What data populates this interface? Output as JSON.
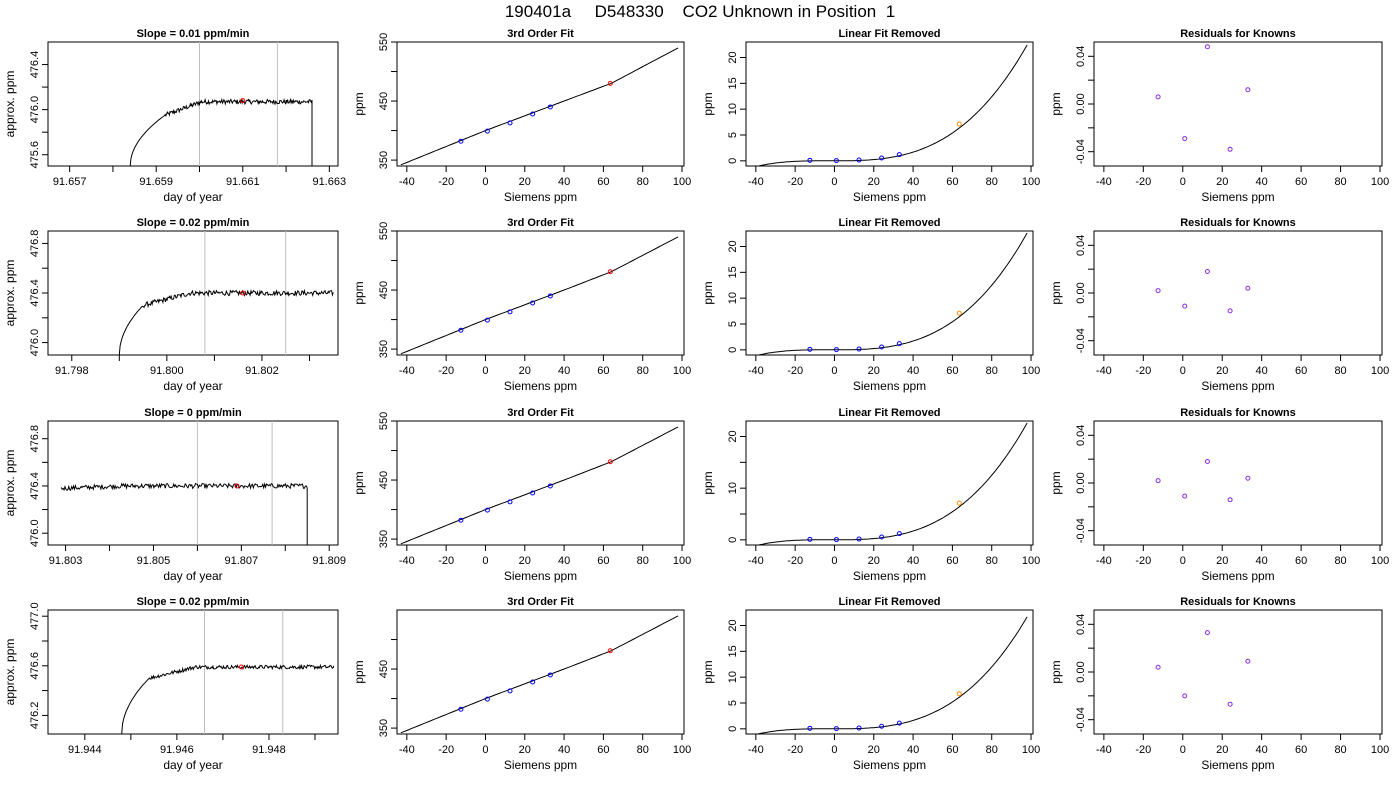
{
  "page": {
    "title": "190401a     D548330    CO2 Unknown in Position  1"
  },
  "colors": {
    "line": "#000000",
    "known_point": "#0000ff",
    "unknown_point": "#ff0000",
    "residual_point": "#8a2be2",
    "unknown_alt_point": "#ff8c00",
    "vline": "#bebebe"
  },
  "chart_data": [
    {
      "row": 1,
      "type": "line",
      "title": "Slope =  0.01  ppm/min",
      "xlabel": "day of year",
      "ylabel": "approx. ppm",
      "xlim": [
        91.6565,
        91.6632
      ],
      "ylim": [
        475.5,
        476.6
      ],
      "xticks": [
        91.657,
        91.658,
        91.659,
        91.66,
        91.661,
        91.662,
        91.663
      ],
      "xtick_labels": [
        "91.657",
        "",
        "91.659",
        "",
        "91.661",
        "",
        "91.663"
      ],
      "yticks": [
        475.6,
        475.8,
        476.0,
        476.2,
        476.4
      ],
      "ytick_labels": [
        "475.6",
        "",
        "476.0",
        "",
        "476.4"
      ],
      "vlines": [
        91.66,
        91.6618
      ],
      "marker": [
        91.661,
        476.08
      ],
      "trace": {
        "start": 91.6584,
        "plateau_start": 91.6592,
        "end": 91.6626,
        "start_level": 475.5,
        "shoulder": 475.95,
        "level": 476.07,
        "end_level": 475.5,
        "noise": 0.02
      }
    },
    {
      "row": 1,
      "type": "scatter",
      "title": "3rd Order Fit",
      "xlabel": "Siemens ppm",
      "ylabel": "ppm",
      "xlim": [
        -45,
        101
      ],
      "ylim": [
        340,
        550
      ],
      "xticks": [
        -40,
        -20,
        0,
        20,
        40,
        60,
        80,
        100
      ],
      "xtick_labels": [
        "-40",
        "-20",
        "0",
        "20",
        "40",
        "60",
        "80",
        "100"
      ],
      "yticks": [
        350,
        400,
        450,
        500,
        550
      ],
      "ytick_labels": [
        "350",
        "",
        "450",
        "",
        "550"
      ],
      "curve": [
        [
          -43,
          342
        ],
        [
          0,
          400
        ],
        [
          40,
          450
        ],
        [
          64,
          480
        ],
        [
          98,
          540
        ]
      ],
      "known_points": [
        [
          -12.5,
          382
        ],
        [
          1,
          399
        ],
        [
          12.5,
          413
        ],
        [
          24,
          428
        ],
        [
          33,
          440
        ]
      ],
      "unknown_points": [
        [
          63.5,
          480
        ]
      ]
    },
    {
      "row": 1,
      "type": "scatter",
      "title": "Linear Fit Removed",
      "xlabel": "Siemens ppm",
      "ylabel": "ppm",
      "xlim": [
        -45,
        101
      ],
      "ylim": [
        -1,
        23
      ],
      "xticks": [
        -40,
        -20,
        0,
        20,
        40,
        60,
        80,
        100
      ],
      "xtick_labels": [
        "-40",
        "-20",
        "0",
        "20",
        "40",
        "60",
        "80",
        "100"
      ],
      "yticks": [
        0,
        5,
        10,
        15,
        20
      ],
      "ytick_labels": [
        "0",
        "5",
        "10",
        "15",
        "20"
      ],
      "curve_cubic": {
        "a": 2.2e-05,
        "b": 0.018,
        "x0": -40,
        "x1": 98
      },
      "known_points": [
        [
          -12.5,
          0.1
        ],
        [
          1,
          0.05
        ],
        [
          12.5,
          0.15
        ],
        [
          24,
          0.55
        ],
        [
          33,
          1.2
        ]
      ],
      "unknown_points": [
        [
          63.5,
          7.1
        ]
      ]
    },
    {
      "row": 1,
      "type": "scatter",
      "title": "Residuals for Knowns",
      "xlabel": "Siemens ppm",
      "ylabel": "ppm",
      "xlim": [
        -45,
        101
      ],
      "ylim": [
        -0.052,
        0.052
      ],
      "xticks": [
        -40,
        -20,
        0,
        20,
        40,
        60,
        80,
        100
      ],
      "xtick_labels": [
        "-40",
        "-20",
        "0",
        "20",
        "40",
        "60",
        "80",
        "100"
      ],
      "yticks": [
        -0.04,
        -0.02,
        0.0,
        0.02,
        0.04
      ],
      "ytick_labels": [
        "-0.04",
        "",
        "0.00",
        "",
        "0.04"
      ],
      "points": [
        [
          -12.5,
          0.006
        ],
        [
          1,
          -0.029
        ],
        [
          12.5,
          0.048
        ],
        [
          24,
          -0.038
        ],
        [
          33,
          0.012
        ]
      ]
    },
    {
      "row": 2,
      "type": "line",
      "title": "Slope =  0.02  ppm/min",
      "xlabel": "day of year",
      "ylabel": "approx. ppm",
      "xlim": [
        91.7975,
        91.8036
      ],
      "ylim": [
        475.9,
        476.9
      ],
      "xticks": [
        91.798,
        91.799,
        91.8,
        91.801,
        91.802,
        91.803
      ],
      "xtick_labels": [
        "91.798",
        "",
        "91.800",
        "",
        "91.802",
        ""
      ],
      "yticks": [
        476.0,
        476.2,
        476.4,
        476.6,
        476.8
      ],
      "ytick_labels": [
        "476.0",
        "",
        "476.4",
        "",
        "476.8"
      ],
      "vlines": [
        91.8008,
        91.8025
      ],
      "marker": [
        91.8016,
        476.4
      ],
      "trace": {
        "start": 91.799,
        "plateau_start": 91.7995,
        "end": 91.8035,
        "start_level": 475.9,
        "shoulder": 476.3,
        "level": 476.4,
        "end_level": 476.4,
        "noise": 0.02
      }
    },
    {
      "row": 2,
      "type": "scatter",
      "title": "3rd Order Fit",
      "xlabel": "Siemens ppm",
      "ylabel": "ppm",
      "xlim": [
        -45,
        101
      ],
      "ylim": [
        340,
        550
      ],
      "xticks": [
        -40,
        -20,
        0,
        20,
        40,
        60,
        80,
        100
      ],
      "xtick_labels": [
        "-40",
        "-20",
        "0",
        "20",
        "40",
        "60",
        "80",
        "100"
      ],
      "yticks": [
        350,
        400,
        450,
        500,
        550
      ],
      "ytick_labels": [
        "350",
        "",
        "450",
        "",
        "550"
      ],
      "curve": [
        [
          -43,
          342
        ],
        [
          0,
          400
        ],
        [
          40,
          450
        ],
        [
          64,
          481
        ],
        [
          98,
          540
        ]
      ],
      "known_points": [
        [
          -12.5,
          382
        ],
        [
          1,
          399
        ],
        [
          12.5,
          413
        ],
        [
          24,
          428
        ],
        [
          33,
          440
        ]
      ],
      "unknown_points": [
        [
          63.5,
          481
        ]
      ]
    },
    {
      "row": 2,
      "type": "scatter",
      "title": "Linear Fit Removed",
      "xlabel": "Siemens ppm",
      "ylabel": "ppm",
      "xlim": [
        -45,
        101
      ],
      "ylim": [
        -1,
        23
      ],
      "xticks": [
        -40,
        -20,
        0,
        20,
        40,
        60,
        80,
        100
      ],
      "xtick_labels": [
        "-40",
        "-20",
        "0",
        "20",
        "40",
        "60",
        "80",
        "100"
      ],
      "yticks": [
        0,
        5,
        10,
        15,
        20
      ],
      "ytick_labels": [
        "0",
        "5",
        "10",
        "15",
        "20"
      ],
      "curve_cubic": {
        "a": 2.22e-05,
        "b": 0.018,
        "x0": -40,
        "x1": 98
      },
      "known_points": [
        [
          -12.5,
          0.1
        ],
        [
          1,
          0.05
        ],
        [
          12.5,
          0.15
        ],
        [
          24,
          0.55
        ],
        [
          33,
          1.2
        ]
      ],
      "unknown_points": [
        [
          63.5,
          7.1
        ]
      ]
    },
    {
      "row": 2,
      "type": "scatter",
      "title": "Residuals for Knowns",
      "xlabel": "Siemens ppm",
      "ylabel": "ppm",
      "xlim": [
        -45,
        101
      ],
      "ylim": [
        -0.052,
        0.052
      ],
      "xticks": [
        -40,
        -20,
        0,
        20,
        40,
        60,
        80,
        100
      ],
      "xtick_labels": [
        "-40",
        "-20",
        "0",
        "20",
        "40",
        "60",
        "80",
        "100"
      ],
      "yticks": [
        -0.04,
        -0.02,
        0.0,
        0.02,
        0.04
      ],
      "ytick_labels": [
        "-0.04",
        "",
        "0.00",
        "",
        "0.04"
      ],
      "points": [
        [
          -12.5,
          0.002
        ],
        [
          1,
          -0.011
        ],
        [
          12.5,
          0.018
        ],
        [
          24,
          -0.015
        ],
        [
          33,
          0.004
        ]
      ]
    },
    {
      "row": 3,
      "type": "line",
      "title": "Slope =  0  ppm/min",
      "xlabel": "day of year",
      "ylabel": "approx. ppm",
      "xlim": [
        91.8026,
        91.8092
      ],
      "ylim": [
        475.9,
        476.95
      ],
      "xticks": [
        91.803,
        91.804,
        91.805,
        91.806,
        91.807,
        91.808,
        91.809
      ],
      "xtick_labels": [
        "91.803",
        "",
        "91.805",
        "",
        "91.807",
        "",
        "91.809"
      ],
      "yticks": [
        476.0,
        476.2,
        476.4,
        476.6,
        476.8
      ],
      "ytick_labels": [
        "476.0",
        "",
        "476.4",
        "",
        "476.8"
      ],
      "vlines": [
        91.806,
        91.8077
      ],
      "marker": [
        91.8069,
        476.4
      ],
      "trace": {
        "start": 91.8029,
        "plateau_start": 91.8029,
        "end": 91.8085,
        "start_level": 476.38,
        "shoulder": 476.38,
        "level": 476.4,
        "end_level": 475.9,
        "noise": 0.02
      }
    },
    {
      "row": 3,
      "type": "scatter",
      "title": "3rd Order Fit",
      "xlabel": "Siemens ppm",
      "ylabel": "ppm",
      "xlim": [
        -45,
        101
      ],
      "ylim": [
        340,
        550
      ],
      "xticks": [
        -40,
        -20,
        0,
        20,
        40,
        60,
        80,
        100
      ],
      "xtick_labels": [
        "-40",
        "-20",
        "0",
        "20",
        "40",
        "60",
        "80",
        "100"
      ],
      "yticks": [
        350,
        400,
        450,
        500,
        550
      ],
      "ytick_labels": [
        "350",
        "",
        "450",
        "",
        "550"
      ],
      "curve": [
        [
          -43,
          342
        ],
        [
          0,
          400
        ],
        [
          40,
          450
        ],
        [
          64,
          481
        ],
        [
          98,
          540
        ]
      ],
      "known_points": [
        [
          -12.5,
          382
        ],
        [
          1,
          399
        ],
        [
          12.5,
          413
        ],
        [
          24,
          428
        ],
        [
          33,
          440
        ]
      ],
      "unknown_points": [
        [
          63.5,
          481
        ]
      ]
    },
    {
      "row": 3,
      "type": "scatter",
      "title": "Linear Fit Removed",
      "xlabel": "Siemens ppm",
      "ylabel": "ppm",
      "xlim": [
        -45,
        101
      ],
      "ylim": [
        -1,
        23
      ],
      "xticks": [
        -40,
        -20,
        0,
        20,
        40,
        60,
        80,
        100
      ],
      "xtick_labels": [
        "-40",
        "-20",
        "0",
        "20",
        "40",
        "60",
        "80",
        "100"
      ],
      "yticks": [
        0,
        5,
        10,
        15,
        20
      ],
      "ytick_labels": [
        "0",
        "",
        "10",
        "",
        "20"
      ],
      "curve_cubic": {
        "a": 2.22e-05,
        "b": 0.018,
        "x0": -40,
        "x1": 98
      },
      "known_points": [
        [
          -12.5,
          0.1
        ],
        [
          1,
          0.05
        ],
        [
          12.5,
          0.15
        ],
        [
          24,
          0.55
        ],
        [
          33,
          1.2
        ]
      ],
      "unknown_points": [
        [
          63.5,
          7.1
        ]
      ]
    },
    {
      "row": 3,
      "type": "scatter",
      "title": "Residuals for Knowns",
      "xlabel": "Siemens ppm",
      "ylabel": "ppm",
      "xlim": [
        -45,
        101
      ],
      "ylim": [
        -0.052,
        0.052
      ],
      "xticks": [
        -40,
        -20,
        0,
        20,
        40,
        60,
        80,
        100
      ],
      "xtick_labels": [
        "-40",
        "-20",
        "0",
        "20",
        "40",
        "60",
        "80",
        "100"
      ],
      "yticks": [
        -0.04,
        -0.02,
        0.0,
        0.02,
        0.04
      ],
      "ytick_labels": [
        "-0.04",
        "",
        "0.00",
        "",
        "0.04"
      ],
      "points": [
        [
          -12.5,
          0.002
        ],
        [
          1,
          -0.011
        ],
        [
          12.5,
          0.018
        ],
        [
          24,
          -0.014
        ],
        [
          33,
          0.004
        ]
      ]
    },
    {
      "row": 4,
      "type": "line",
      "title": "Slope =  0.02  ppm/min",
      "xlabel": "day of year",
      "ylabel": "approx. ppm",
      "xlim": [
        91.9432,
        91.9495
      ],
      "ylim": [
        476.05,
        477.05
      ],
      "xticks": [
        91.944,
        91.945,
        91.946,
        91.947,
        91.948,
        91.949
      ],
      "xtick_labels": [
        "91.944",
        "",
        "91.946",
        "",
        "91.948",
        ""
      ],
      "yticks": [
        476.2,
        476.4,
        476.6,
        476.8,
        477.0
      ],
      "ytick_labels": [
        "476.2",
        "",
        "476.6",
        "",
        "477.0"
      ],
      "vlines": [
        91.9466,
        91.9483
      ],
      "marker": [
        91.9474,
        476.59
      ],
      "trace": {
        "start": 91.9448,
        "plateau_start": 91.9454,
        "end": 91.9494,
        "start_level": 476.05,
        "shoulder": 476.5,
        "level": 476.59,
        "end_level": 476.6,
        "noise": 0.015
      }
    },
    {
      "row": 4,
      "type": "scatter",
      "title": "3rd Order Fit",
      "xlabel": "Siemens ppm",
      "ylabel": "ppm",
      "xlim": [
        -45,
        101
      ],
      "ylim": [
        340,
        550
      ],
      "xticks": [
        -40,
        -20,
        0,
        20,
        40,
        60,
        80,
        100
      ],
      "xtick_labels": [
        "-40",
        "-20",
        "0",
        "20",
        "40",
        "60",
        "80",
        "100"
      ],
      "yticks": [
        350,
        400,
        450,
        500
      ],
      "ytick_labels": [
        "350",
        "",
        "450",
        ""
      ],
      "curve": [
        [
          -43,
          342
        ],
        [
          0,
          400
        ],
        [
          40,
          450
        ],
        [
          64,
          481
        ],
        [
          98,
          540
        ]
      ],
      "known_points": [
        [
          -12.5,
          382
        ],
        [
          1,
          399
        ],
        [
          12.5,
          413
        ],
        [
          24,
          428
        ],
        [
          33,
          440
        ]
      ],
      "unknown_points": [
        [
          63.5,
          481
        ]
      ]
    },
    {
      "row": 4,
      "type": "scatter",
      "title": "Linear Fit Removed",
      "xlabel": "Siemens ppm",
      "ylabel": "ppm",
      "xlim": [
        -45,
        101
      ],
      "ylim": [
        -1,
        23
      ],
      "xticks": [
        -40,
        -20,
        0,
        20,
        40,
        60,
        80,
        100
      ],
      "xtick_labels": [
        "-40",
        "-20",
        "0",
        "20",
        "40",
        "60",
        "80",
        "100"
      ],
      "yticks": [
        0,
        5,
        10,
        15,
        20
      ],
      "ytick_labels": [
        "0",
        "5",
        "10",
        "15",
        "20"
      ],
      "curve_cubic": {
        "a": 2.13e-05,
        "b": 0.017,
        "x0": -40,
        "x1": 98
      },
      "known_points": [
        [
          -12.5,
          0.1
        ],
        [
          1,
          0.05
        ],
        [
          12.5,
          0.15
        ],
        [
          24,
          0.5
        ],
        [
          33,
          1.1
        ]
      ],
      "unknown_points": [
        [
          63.5,
          6.8
        ]
      ]
    },
    {
      "row": 4,
      "type": "scatter",
      "title": "Residuals for Knowns",
      "xlabel": "Siemens ppm",
      "ylabel": "ppm",
      "xlim": [
        -45,
        101
      ],
      "ylim": [
        -0.052,
        0.052
      ],
      "xticks": [
        -40,
        -20,
        0,
        20,
        40,
        60,
        80,
        100
      ],
      "xtick_labels": [
        "-40",
        "-20",
        "0",
        "20",
        "40",
        "60",
        "80",
        "100"
      ],
      "yticks": [
        -0.04,
        -0.02,
        0.0,
        0.02,
        0.04
      ],
      "ytick_labels": [
        "-0.04",
        "",
        "0.00",
        "",
        "0.04"
      ],
      "points": [
        [
          -12.5,
          0.004
        ],
        [
          1,
          -0.02
        ],
        [
          12.5,
          0.033
        ],
        [
          24,
          -0.027
        ],
        [
          33,
          0.009
        ]
      ]
    }
  ]
}
